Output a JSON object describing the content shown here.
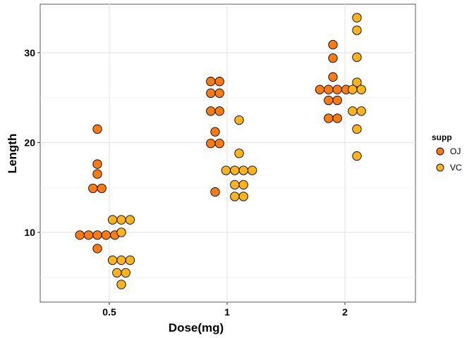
{
  "chart_data": {
    "type": "dotplot",
    "xlabel": "Dose(mg)",
    "ylabel": "Length",
    "categories": [
      "0.5",
      "1",
      "2"
    ],
    "yticks": [
      10,
      20,
      30
    ],
    "ylim": [
      2.24,
      35.4
    ],
    "grid": true,
    "legend": {
      "title": "supp",
      "position": "right"
    },
    "series": [
      {
        "name": "OJ",
        "color": "#F97C12",
        "values": [
          [
            21.5,
            17.6,
            16.5,
            14.9,
            14.9,
            9.7,
            9.7,
            9.7,
            9.7,
            9.7,
            8.2
          ],
          [
            26.8,
            26.8,
            25.5,
            25.5,
            23.5,
            23.5,
            21.2,
            19.9,
            19.9,
            14.5
          ],
          [
            30.9,
            29.4,
            27.3,
            25.9,
            25.9,
            25.9,
            25.9,
            24.7,
            24.7,
            22.7,
            22.7
          ]
        ]
      },
      {
        "name": "VC",
        "color": "#FBB41C",
        "values": [
          [
            11.4,
            11.4,
            11.4,
            10.0,
            6.9,
            6.9,
            6.9,
            5.5,
            5.5,
            4.2
          ],
          [
            22.5,
            18.8,
            16.9,
            16.9,
            16.9,
            16.9,
            15.3,
            15.3,
            14.0,
            14.0
          ],
          [
            33.9,
            32.5,
            29.5,
            26.7,
            25.9,
            25.9,
            23.5,
            23.5,
            21.5,
            18.5
          ]
        ]
      }
    ]
  }
}
